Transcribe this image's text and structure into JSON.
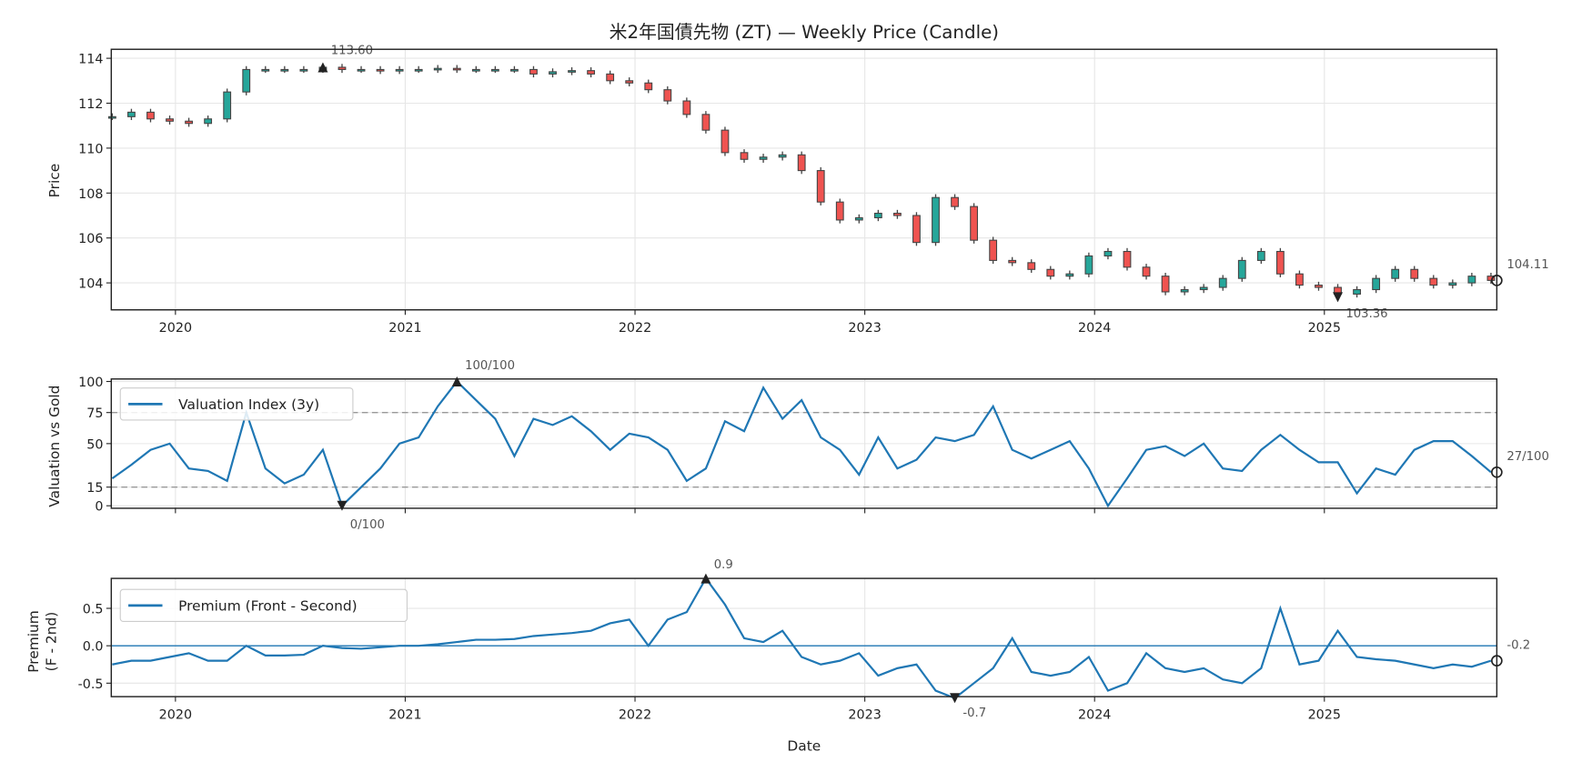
{
  "chart_data": [
    {
      "type": "candlestick",
      "title": "米2年国債先物 (ZT) — Weekly Price (Candle)",
      "ylabel": "Price",
      "ylim": [
        102.8,
        114.4
      ],
      "yticks": [
        "104",
        "106",
        "108",
        "110",
        "112",
        "114"
      ],
      "xticks": [
        "2020",
        "2021",
        "2022",
        "2023",
        "2024",
        "2025"
      ],
      "start": "2019-09",
      "interval": "monthly (approx.)",
      "close": [
        111.4,
        111.6,
        111.3,
        111.2,
        111.1,
        111.3,
        112.5,
        113.5,
        113.5,
        113.5,
        113.5,
        113.6,
        113.5,
        113.5,
        113.45,
        113.5,
        113.5,
        113.55,
        113.5,
        113.5,
        113.5,
        113.5,
        113.3,
        113.4,
        113.45,
        113.3,
        113.0,
        112.9,
        112.6,
        112.1,
        111.5,
        110.8,
        109.8,
        109.5,
        109.6,
        109.7,
        109.0,
        107.6,
        106.8,
        106.9,
        107.1,
        107.0,
        105.8,
        107.8,
        107.4,
        105.9,
        105.0,
        104.9,
        104.6,
        104.3,
        104.4,
        105.2,
        105.4,
        104.7,
        104.3,
        103.6,
        103.7,
        103.8,
        104.2,
        105.0,
        105.4,
        104.4,
        103.9,
        103.8,
        103.5,
        103.7,
        104.2,
        104.6,
        104.2,
        103.9,
        104.0,
        104.3,
        104.11
      ],
      "annotations": {
        "max_label": "113.60",
        "max_index": 11,
        "min_label": "103.36",
        "min_index": 64,
        "last_label": "104.11"
      }
    },
    {
      "type": "line",
      "ylabel": "Valuation vs Gold",
      "ylim": [
        -2,
        102
      ],
      "yticks": [
        "0",
        "15",
        "50",
        "75",
        "100"
      ],
      "thresholds": [
        15,
        75
      ],
      "legend": "Valuation Index (3y)",
      "legend_position": "upper-left",
      "values": [
        22,
        33,
        45,
        50,
        30,
        28,
        20,
        75,
        30,
        18,
        25,
        45,
        0,
        15,
        30,
        50,
        55,
        80,
        100,
        85,
        70,
        40,
        70,
        65,
        72,
        60,
        45,
        58,
        55,
        45,
        20,
        30,
        68,
        60,
        95,
        70,
        85,
        55,
        45,
        25,
        55,
        30,
        37,
        55,
        52,
        57,
        80,
        45,
        38,
        45,
        52,
        30,
        0,
        22,
        45,
        48,
        40,
        50,
        30,
        28,
        45,
        57,
        45,
        35,
        35,
        10,
        30,
        25,
        45,
        52,
        52,
        40,
        27
      ],
      "annotations": {
        "max_label": "100/100",
        "max_index": 18,
        "min_label": "0/100",
        "min_index": 12,
        "last_label": "27/100"
      }
    },
    {
      "type": "line",
      "ylabel": "Premium\n(F - 2nd)",
      "ylabel_lines": [
        "Premium",
        "(F - 2nd)"
      ],
      "xlabel": "Date",
      "ylim": [
        -0.68,
        0.9
      ],
      "yticks": [
        "-0.5",
        "0.0",
        "0.5"
      ],
      "xticks": [
        "2020",
        "2021",
        "2022",
        "2023",
        "2024",
        "2025"
      ],
      "legend": "Premium (Front - Second)",
      "legend_position": "upper-left",
      "values": [
        -0.25,
        -0.2,
        -0.2,
        -0.15,
        -0.1,
        -0.2,
        -0.2,
        0.0,
        -0.13,
        -0.13,
        -0.12,
        0.0,
        -0.03,
        -0.04,
        -0.02,
        0.0,
        0.0,
        0.02,
        0.05,
        0.08,
        0.08,
        0.09,
        0.13,
        0.15,
        0.17,
        0.2,
        0.3,
        0.35,
        0.0,
        0.35,
        0.45,
        0.9,
        0.55,
        0.1,
        0.05,
        0.2,
        -0.15,
        -0.25,
        -0.2,
        -0.1,
        -0.4,
        -0.3,
        -0.25,
        -0.6,
        -0.7,
        -0.5,
        -0.3,
        0.1,
        -0.35,
        -0.4,
        -0.35,
        -0.15,
        -0.6,
        -0.5,
        -0.1,
        -0.3,
        -0.35,
        -0.3,
        -0.45,
        -0.5,
        -0.3,
        0.5,
        -0.25,
        -0.2,
        0.2,
        -0.15,
        -0.18,
        -0.2,
        -0.25,
        -0.3,
        -0.25,
        -0.28,
        -0.2
      ],
      "annotations": {
        "max_label": "0.9",
        "max_index": 31,
        "min_label": "-0.7",
        "min_index": 44,
        "last_label": "-0.2"
      }
    }
  ],
  "colors": {
    "line": "#1f77b4",
    "up": "#26a69a",
    "down": "#ef5350",
    "edge": "#444444"
  }
}
